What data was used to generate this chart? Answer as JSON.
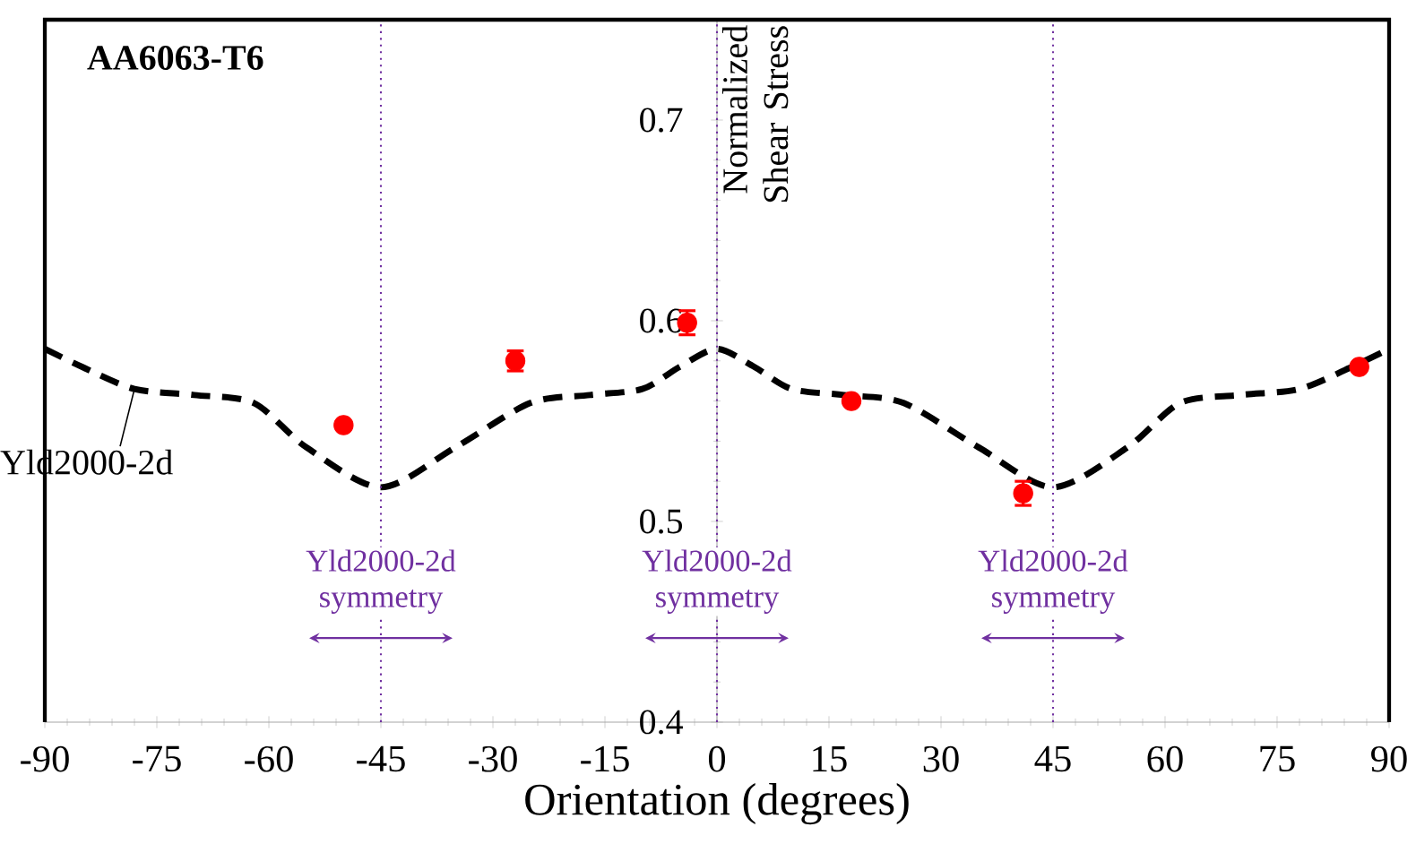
{
  "chart_data": {
    "type": "scatter",
    "title": "AA6063-T6",
    "xlabel": "Orientation (degrees)",
    "ylabel": "Normalized Shear Stress",
    "xlim": [
      -90,
      90
    ],
    "ylim": [
      0.4,
      0.75
    ],
    "xticks": [
      -90,
      -75,
      -60,
      -45,
      -30,
      -15,
      0,
      15,
      30,
      45,
      60,
      75,
      90
    ],
    "yticks": [
      0.4,
      0.5,
      0.6,
      0.7
    ],
    "series": [
      {
        "type": "line",
        "name": "Yld2000-2d",
        "color": "#000000",
        "line_style": "dashed",
        "marker": "none",
        "x": [
          -90,
          -85,
          -78,
          -70,
          -62,
          -55,
          -45,
          -35,
          -25,
          -17,
          -10,
          -5,
          0,
          5,
          10,
          17,
          25,
          35,
          45,
          55,
          62,
          70,
          78,
          85,
          90
        ],
        "values": [
          0.586,
          0.577,
          0.566,
          0.563,
          0.559,
          0.537,
          0.517,
          0.537,
          0.559,
          0.563,
          0.566,
          0.577,
          0.586,
          0.577,
          0.566,
          0.563,
          0.559,
          0.537,
          0.517,
          0.537,
          0.559,
          0.563,
          0.566,
          0.577,
          0.586
        ]
      },
      {
        "color": "#ff0000",
        "marker": "circle",
        "x": [
          -50,
          -27,
          -4,
          18,
          41,
          86
        ],
        "values": [
          0.548,
          0.58,
          0.599,
          0.56,
          0.514,
          0.577
        ],
        "errors": [
          null,
          0.005,
          0.006,
          null,
          0.006,
          null
        ]
      }
    ],
    "ref_lines": [
      {
        "axis": "x",
        "value": -45,
        "label": "Yld2000-2d symmetry",
        "color": "#7030a0",
        "line_style": "dotted"
      },
      {
        "axis": "x",
        "value": 0,
        "label": "Yld2000-2d symmetry",
        "color": "#7030a0",
        "line_style": "dotted"
      },
      {
        "axis": "x",
        "value": 45,
        "label": "Yld2000-2d symmetry",
        "color": "#7030a0",
        "line_style": "dotted"
      }
    ],
    "grid": false
  }
}
